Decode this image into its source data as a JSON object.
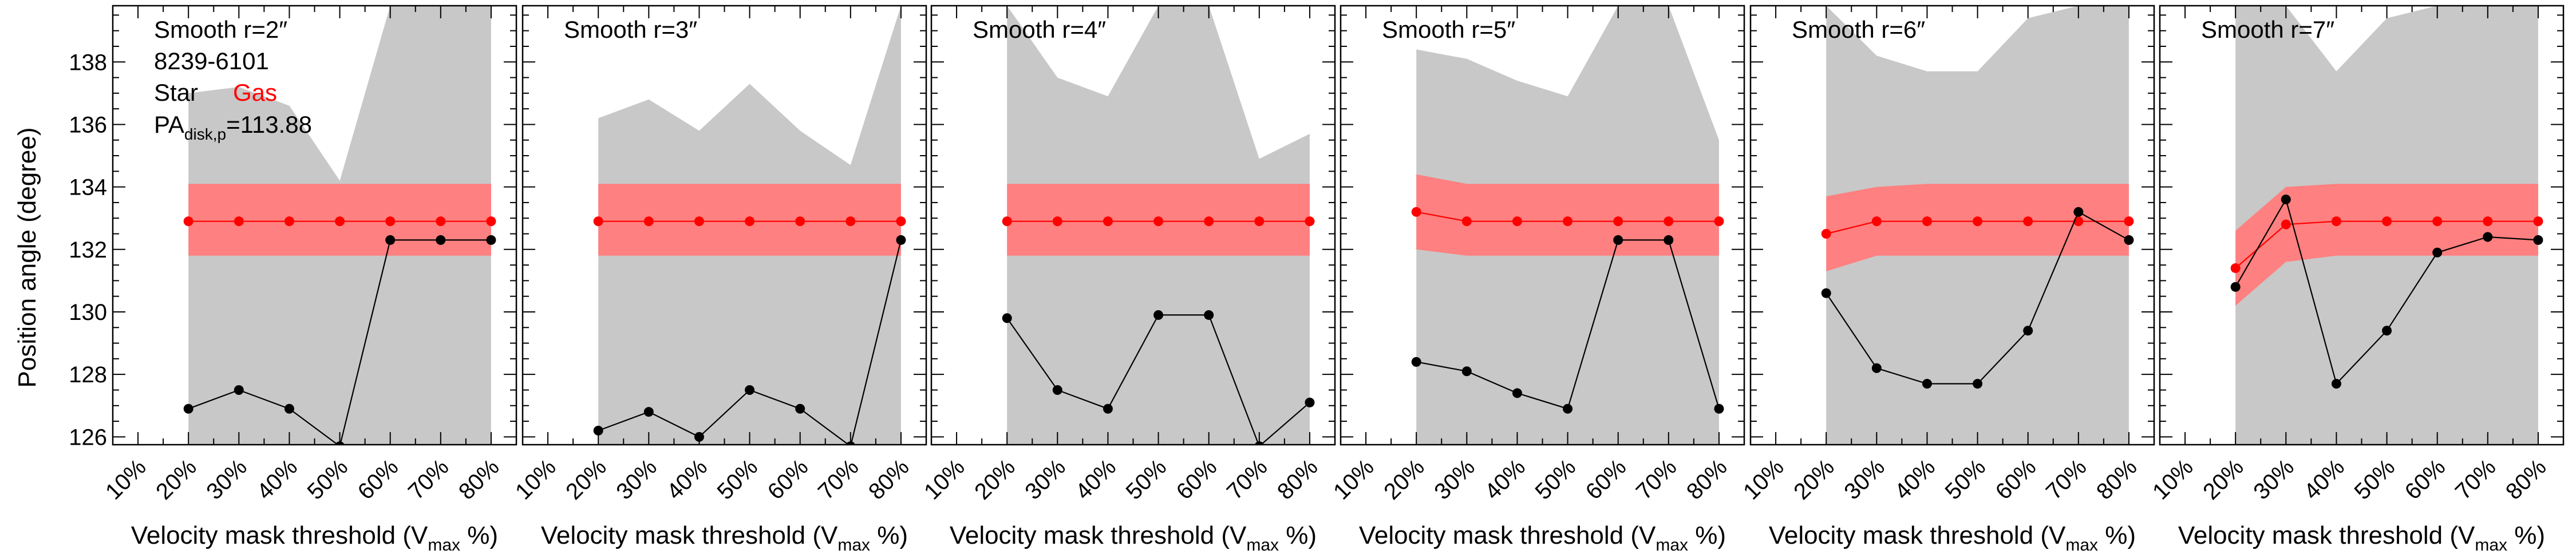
{
  "figure": {
    "ylabel": "Position angle (degree)",
    "xlabel_main": "Velocity mask threshold (V",
    "xlabel_sub": "max",
    "xlabel_end": " %)",
    "x_tick_labels": [
      "10%",
      "20%",
      "30%",
      "40%",
      "50%",
      "60%",
      "70%",
      "80%"
    ],
    "y_tick_labels": [
      "126",
      "128",
      "130",
      "132",
      "134",
      "136",
      "138"
    ],
    "legend": {
      "galaxy_id": "8239-6101",
      "star_label": "Star",
      "gas_label": "Gas",
      "pa_prefix": "PA",
      "pa_sub": "disk,p",
      "pa_value": "=113.88"
    }
  },
  "colors": {
    "star": "#000000",
    "gas": "#ff0000",
    "star_band": "#c8c8c8",
    "gas_band": "#ff8080"
  },
  "chart_data": [
    {
      "type": "line",
      "title": "Smooth r=2″",
      "x": [
        20,
        30,
        40,
        50,
        60,
        70,
        80
      ],
      "xlim": [
        5,
        85
      ],
      "ylim": [
        125.75,
        139.8
      ],
      "series": [
        {
          "name": "Star",
          "values": [
            126.9,
            127.5,
            126.9,
            125.7,
            132.3,
            132.3,
            132.3
          ],
          "band_upper": [
            137.0,
            137.2,
            136.6,
            134.2,
            139.8,
            139.8,
            139.8
          ],
          "band_lower": [
            125.7,
            125.7,
            125.7,
            125.7,
            125.7,
            125.7,
            125.7
          ]
        },
        {
          "name": "Gas",
          "values": [
            132.9,
            132.9,
            132.9,
            132.9,
            132.9,
            132.9,
            132.9
          ],
          "band_upper": [
            134.1,
            134.1,
            134.1,
            134.1,
            134.1,
            134.1,
            134.1
          ],
          "band_lower": [
            131.8,
            131.8,
            131.8,
            131.8,
            131.8,
            131.8,
            131.8
          ]
        }
      ]
    },
    {
      "type": "line",
      "title": "Smooth r=3″",
      "x": [
        20,
        30,
        40,
        50,
        60,
        70,
        80
      ],
      "xlim": [
        5,
        85
      ],
      "ylim": [
        125.75,
        139.8
      ],
      "series": [
        {
          "name": "Star",
          "values": [
            126.2,
            126.8,
            126.0,
            127.5,
            126.9,
            125.7,
            132.3
          ],
          "band_upper": [
            136.2,
            136.8,
            135.8,
            137.3,
            135.8,
            134.7,
            139.8
          ],
          "band_lower": [
            125.7,
            125.7,
            125.7,
            125.7,
            125.7,
            125.7,
            125.7
          ]
        },
        {
          "name": "Gas",
          "values": [
            132.9,
            132.9,
            132.9,
            132.9,
            132.9,
            132.9,
            132.9
          ],
          "band_upper": [
            134.1,
            134.1,
            134.1,
            134.1,
            134.1,
            134.1,
            134.1
          ],
          "band_lower": [
            131.8,
            131.8,
            131.8,
            131.8,
            131.8,
            131.8,
            131.8
          ]
        }
      ]
    },
    {
      "type": "line",
      "title": "Smooth r=4″",
      "x": [
        20,
        30,
        40,
        50,
        60,
        70,
        80
      ],
      "xlim": [
        5,
        85
      ],
      "ylim": [
        125.75,
        139.8
      ],
      "series": [
        {
          "name": "Star",
          "values": [
            129.8,
            127.5,
            126.9,
            129.9,
            129.9,
            125.7,
            127.1
          ],
          "band_upper": [
            139.8,
            137.5,
            136.9,
            139.8,
            139.8,
            134.9,
            135.7
          ],
          "band_lower": [
            125.7,
            125.7,
            125.7,
            125.7,
            125.7,
            125.7,
            125.7
          ]
        },
        {
          "name": "Gas",
          "values": [
            132.9,
            132.9,
            132.9,
            132.9,
            132.9,
            132.9,
            132.9
          ],
          "band_upper": [
            134.1,
            134.1,
            134.1,
            134.1,
            134.1,
            134.1,
            134.1
          ],
          "band_lower": [
            131.8,
            131.8,
            131.8,
            131.8,
            131.8,
            131.8,
            131.8
          ]
        }
      ]
    },
    {
      "type": "line",
      "title": "Smooth r=5″",
      "x": [
        20,
        30,
        40,
        50,
        60,
        70,
        80
      ],
      "xlim": [
        5,
        85
      ],
      "ylim": [
        125.75,
        139.8
      ],
      "series": [
        {
          "name": "Star",
          "values": [
            128.4,
            128.1,
            127.4,
            126.9,
            132.3,
            132.3,
            126.9
          ],
          "band_upper": [
            138.4,
            138.1,
            137.4,
            136.9,
            139.8,
            139.8,
            135.5
          ],
          "band_lower": [
            125.7,
            125.7,
            125.7,
            125.7,
            125.7,
            125.7,
            125.7
          ]
        },
        {
          "name": "Gas",
          "values": [
            133.2,
            132.9,
            132.9,
            132.9,
            132.9,
            132.9,
            132.9
          ],
          "band_upper": [
            134.4,
            134.1,
            134.1,
            134.1,
            134.1,
            134.1,
            134.1
          ],
          "band_lower": [
            132.0,
            131.8,
            131.8,
            131.8,
            131.8,
            131.8,
            131.8
          ]
        }
      ]
    },
    {
      "type": "line",
      "title": "Smooth r=6″",
      "x": [
        20,
        30,
        40,
        50,
        60,
        70,
        80
      ],
      "xlim": [
        5,
        85
      ],
      "ylim": [
        125.75,
        139.8
      ],
      "series": [
        {
          "name": "Star",
          "values": [
            130.6,
            128.2,
            127.7,
            127.7,
            129.4,
            133.2,
            132.3
          ],
          "band_upper": [
            139.8,
            138.2,
            137.7,
            137.7,
            139.4,
            139.8,
            139.8
          ],
          "band_lower": [
            125.7,
            125.7,
            125.7,
            125.7,
            125.7,
            125.7,
            125.7
          ]
        },
        {
          "name": "Gas",
          "values": [
            132.5,
            132.9,
            132.9,
            132.9,
            132.9,
            132.9,
            132.9
          ],
          "band_upper": [
            133.7,
            134.0,
            134.1,
            134.1,
            134.1,
            134.1,
            134.1
          ],
          "band_lower": [
            131.3,
            131.8,
            131.8,
            131.8,
            131.8,
            131.8,
            131.8
          ]
        }
      ]
    },
    {
      "type": "line",
      "title": "Smooth r=7″",
      "x": [
        20,
        30,
        40,
        50,
        60,
        70,
        80
      ],
      "xlim": [
        5,
        85
      ],
      "ylim": [
        125.75,
        139.8
      ],
      "series": [
        {
          "name": "Star",
          "values": [
            130.8,
            133.6,
            127.7,
            129.4,
            131.9,
            132.4,
            132.3
          ],
          "band_upper": [
            139.8,
            139.8,
            137.7,
            139.4,
            139.8,
            139.8,
            139.8
          ],
          "band_lower": [
            125.7,
            125.7,
            125.7,
            125.7,
            125.7,
            125.7,
            125.7
          ]
        },
        {
          "name": "Gas",
          "values": [
            131.4,
            132.8,
            132.9,
            132.9,
            132.9,
            132.9,
            132.9
          ],
          "band_upper": [
            132.6,
            134.0,
            134.1,
            134.1,
            134.1,
            134.1,
            134.1
          ],
          "band_lower": [
            130.2,
            131.6,
            131.8,
            131.8,
            131.8,
            131.8,
            131.8
          ]
        }
      ]
    }
  ]
}
